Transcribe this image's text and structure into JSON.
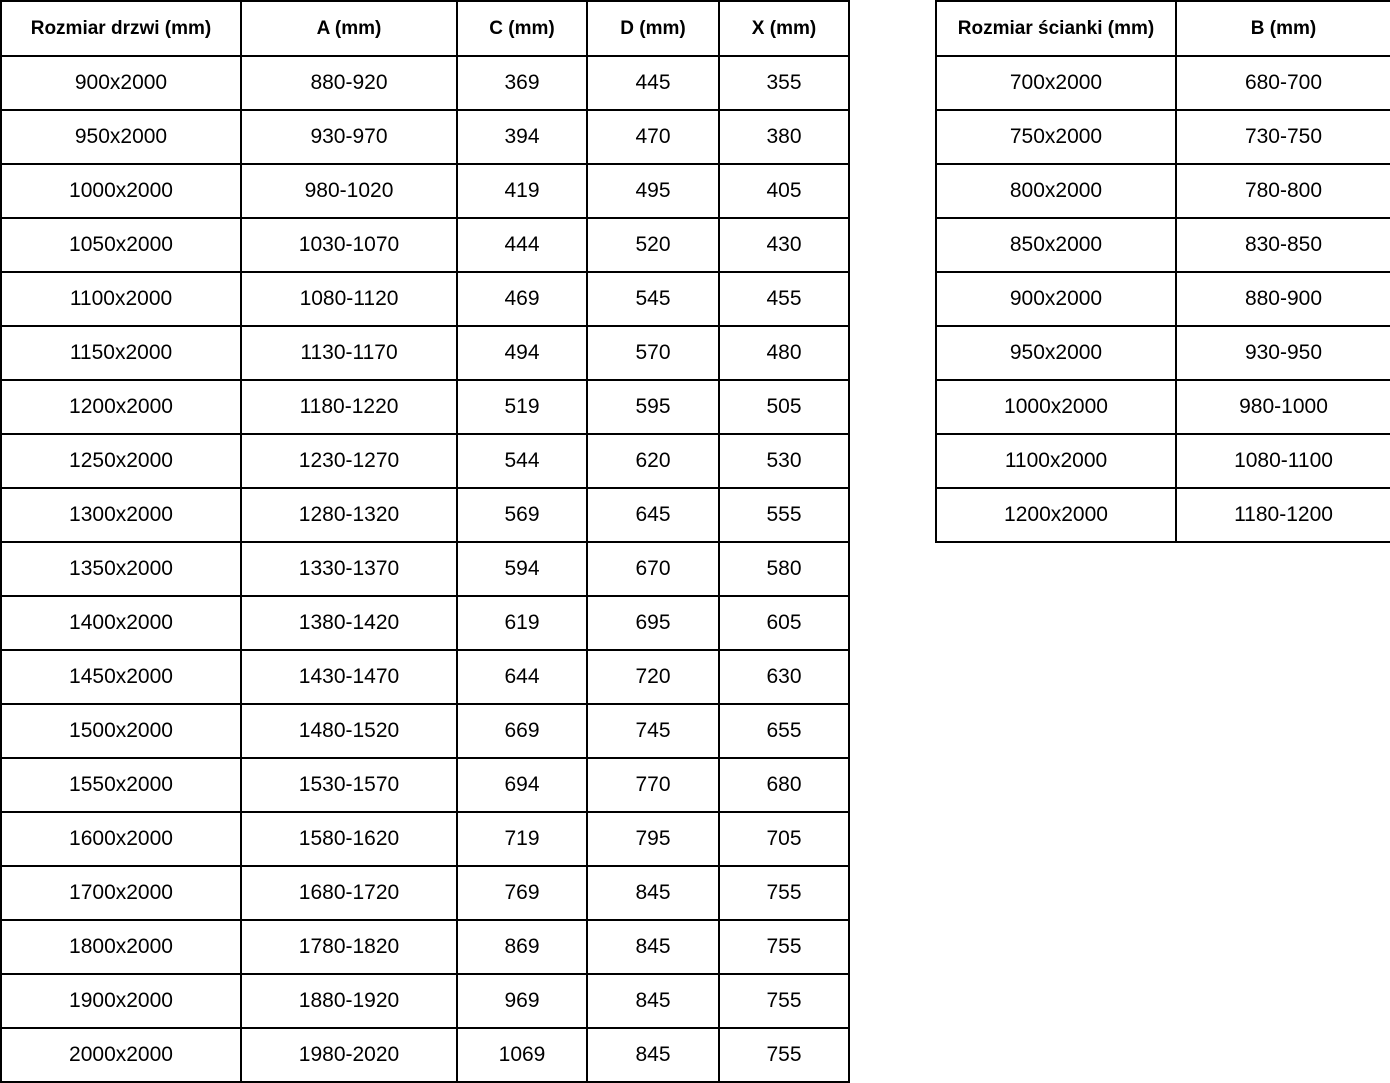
{
  "colors": {
    "background": "#ffffff",
    "border": "#000000",
    "text": "#000000"
  },
  "door_table": {
    "headers": [
      "Rozmiar drzwi (mm)",
      "A (mm)",
      "C (mm)",
      "D (mm)",
      "X (mm)"
    ],
    "rows": [
      [
        "900x2000",
        "880-920",
        "369",
        "445",
        "355"
      ],
      [
        "950x2000",
        "930-970",
        "394",
        "470",
        "380"
      ],
      [
        "1000x2000",
        "980-1020",
        "419",
        "495",
        "405"
      ],
      [
        "1050x2000",
        "1030-1070",
        "444",
        "520",
        "430"
      ],
      [
        "1100x2000",
        "1080-1120",
        "469",
        "545",
        "455"
      ],
      [
        "1150x2000",
        "1130-1170",
        "494",
        "570",
        "480"
      ],
      [
        "1200x2000",
        "1180-1220",
        "519",
        "595",
        "505"
      ],
      [
        "1250x2000",
        "1230-1270",
        "544",
        "620",
        "530"
      ],
      [
        "1300x2000",
        "1280-1320",
        "569",
        "645",
        "555"
      ],
      [
        "1350x2000",
        "1330-1370",
        "594",
        "670",
        "580"
      ],
      [
        "1400x2000",
        "1380-1420",
        "619",
        "695",
        "605"
      ],
      [
        "1450x2000",
        "1430-1470",
        "644",
        "720",
        "630"
      ],
      [
        "1500x2000",
        "1480-1520",
        "669",
        "745",
        "655"
      ],
      [
        "1550x2000",
        "1530-1570",
        "694",
        "770",
        "680"
      ],
      [
        "1600x2000",
        "1580-1620",
        "719",
        "795",
        "705"
      ],
      [
        "1700x2000",
        "1680-1720",
        "769",
        "845",
        "755"
      ],
      [
        "1800x2000",
        "1780-1820",
        "869",
        "845",
        "755"
      ],
      [
        "1900x2000",
        "1880-1920",
        "969",
        "845",
        "755"
      ],
      [
        "2000x2000",
        "1980-2020",
        "1069",
        "845",
        "755"
      ]
    ]
  },
  "wall_table": {
    "headers": [
      "Rozmiar ścianki (mm)",
      "B (mm)"
    ],
    "rows": [
      [
        "700x2000",
        "680-700"
      ],
      [
        "750x2000",
        "730-750"
      ],
      [
        "800x2000",
        "780-800"
      ],
      [
        "850x2000",
        "830-850"
      ],
      [
        "900x2000",
        "880-900"
      ],
      [
        "950x2000",
        "930-950"
      ],
      [
        "1000x2000",
        "980-1000"
      ],
      [
        "1100x2000",
        "1080-1100"
      ],
      [
        "1200x2000",
        "1180-1200"
      ]
    ]
  }
}
